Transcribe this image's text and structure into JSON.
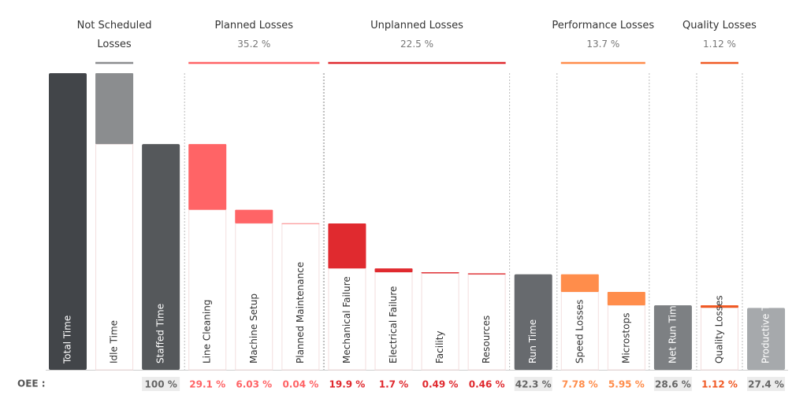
{
  "chart_data": {
    "type": "waterfall",
    "row_label": "OEE :",
    "categories": [
      "Total Time",
      "Idle Time",
      "Staffed Time",
      "Line Cleaning",
      "Machine Setup",
      "Planned Maintenance",
      "Mechanical Failure",
      "Electrical Failure",
      "Facility",
      "Resources",
      "Run Time",
      "Speed Losses",
      "Microstops",
      "Net Run Time",
      "Quality Losses",
      "Productive Time"
    ],
    "measures": [
      "total",
      "loss",
      "total",
      "loss",
      "loss",
      "loss",
      "loss",
      "loss",
      "loss",
      "loss",
      "total",
      "loss",
      "loss",
      "total",
      "loss",
      "total"
    ],
    "values": [
      131.4,
      31.4,
      100,
      29.1,
      6.03,
      0.04,
      19.9,
      1.7,
      0.49,
      0.46,
      42.3,
      7.78,
      5.95,
      28.6,
      1.12,
      27.4
    ],
    "value_labels": [
      null,
      null,
      "100 %",
      "29.1 %",
      "6.03 %",
      "0.04 %",
      "19.9 %",
      "1.7 %",
      "0.49 %",
      "0.46 %",
      "42.3 %",
      "7.78 %",
      "5.95 %",
      "28.6 %",
      "1.12 %",
      "27.4 %"
    ],
    "colors": [
      "#424549",
      "#8b8d8f",
      "#55585b",
      "#ff6466",
      "#ff6466",
      "#ff6466",
      "#e02a2f",
      "#e02a2f",
      "#e02a2f",
      "#e02a2f",
      "#676a6e",
      "#ff8d4b",
      "#ff8d4b",
      "#7d8083",
      "#f05a25",
      "#a6a9ac"
    ],
    "groups": [
      {
        "name": "Not Scheduled Losses",
        "start": 1,
        "end": 1,
        "color": "#8b8d8f"
      },
      {
        "name": "Planned Losses",
        "share": "35.2 %",
        "start": 3,
        "end": 5,
        "color": "#ff6466"
      },
      {
        "name": "Unplanned Losses",
        "share": "22.5 %",
        "start": 6,
        "end": 9,
        "color": "#e02a2f"
      },
      {
        "name": "Performance Losses",
        "share": "13.7 %",
        "start": 11,
        "end": 12,
        "color": "#ff8d4b"
      },
      {
        "name": "Quality Losses",
        "share": "1.12 %",
        "start": 14,
        "end": 14,
        "color": "#f05a25"
      }
    ]
  }
}
